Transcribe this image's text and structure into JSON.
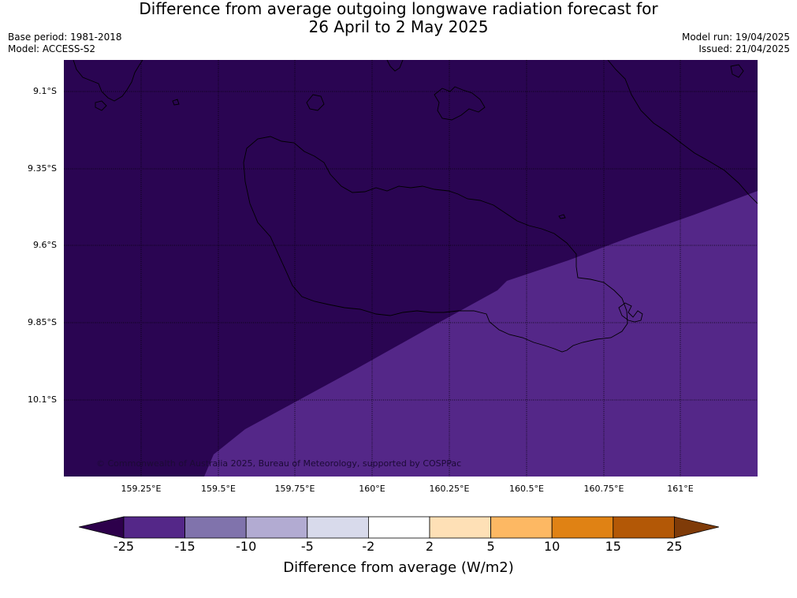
{
  "header": {
    "title_line1": "Difference from average outgoing longwave radiation forecast for",
    "title_line2": "26 April to 2 May 2025",
    "base_period": "Base period: 1981-2018",
    "model": "Model: ACCESS-S2",
    "model_run": "Model run: 19/04/2025",
    "issued": "Issued: 21/04/2025"
  },
  "map": {
    "lat_labels": [
      "9.1°S",
      "9.35°S",
      "9.6°S",
      "9.85°S",
      "10.1°S"
    ],
    "lon_labels": [
      "159.25°E",
      "159.5°E",
      "159.75°E",
      "160°E",
      "160.25°E",
      "160.5°E",
      "160.75°E",
      "161°E"
    ],
    "copyright": "© Commonwealth of Australia 2025, Bureau of Meteorology, supported by COSPPac",
    "colors": {
      "anomaly_below_25": "#2a0552",
      "anomaly_25_15": "#542788",
      "coastline": "#000000"
    }
  },
  "colorbar": {
    "ticks": [
      "-25",
      "-15",
      "-10",
      "-5",
      "-2",
      "2",
      "5",
      "10",
      "15",
      "25"
    ],
    "colors": [
      "#542788",
      "#8073ac",
      "#b2abd2",
      "#d8daeb",
      "#ffffff",
      "#fee0b6",
      "#fdb863",
      "#e08214",
      "#b35806"
    ],
    "under_color": "#2d004b",
    "over_color": "#7f3b08",
    "label": "Difference from average (W/m2)"
  }
}
